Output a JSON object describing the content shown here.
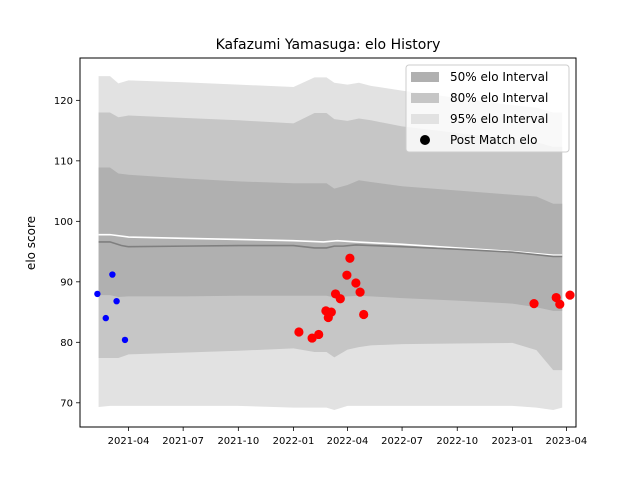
{
  "chart_data": {
    "type": "scatter",
    "title": "Kafazumi Yamasuga: elo History",
    "ylabel": "elo score",
    "xlabel": "",
    "xlim": [
      "2021-01-10",
      "2023-04-17"
    ],
    "ylim": [
      66,
      127
    ],
    "x_ticks": [
      "2021-04",
      "2021-07",
      "2021-10",
      "2022-01",
      "2022-04",
      "2022-07",
      "2022-10",
      "2023-01",
      "2023-04"
    ],
    "x_tick_dates": [
      "2021-04-01",
      "2021-07-01",
      "2021-10-01",
      "2022-01-01",
      "2022-04-01",
      "2022-07-01",
      "2022-10-01",
      "2023-01-01",
      "2023-04-01"
    ],
    "y_ticks": [
      70,
      80,
      90,
      100,
      110,
      120
    ],
    "legend_position": "upper right",
    "legend": [
      {
        "label": "50% elo Interval",
        "color": "#b0b0b0",
        "kind": "patch"
      },
      {
        "label": "80% elo Interval",
        "color": "#c6c6c6",
        "kind": "patch"
      },
      {
        "label": "95% elo Interval",
        "color": "#e2e2e2",
        "kind": "patch"
      },
      {
        "label": "Post Match elo",
        "color": "#000000",
        "kind": "marker"
      }
    ],
    "band_dates": [
      "2021-02-10",
      "2021-03-01",
      "2021-03-15",
      "2021-04-01",
      "2021-07-01",
      "2021-10-01",
      "2022-01-01",
      "2022-02-05",
      "2022-02-25",
      "2022-03-10",
      "2022-04-01",
      "2022-04-20",
      "2022-05-10",
      "2022-07-01",
      "2022-10-01",
      "2023-01-01",
      "2023-02-10",
      "2023-03-10",
      "2023-03-25"
    ],
    "band_95": {
      "upper": [
        124.0,
        124.0,
        122.8,
        123.3,
        123.0,
        122.6,
        122.2,
        123.8,
        123.8,
        122.9,
        122.6,
        122.9,
        122.4,
        121.6,
        120.4,
        119.2,
        118.8,
        118.0,
        118.0
      ],
      "lower": [
        69.3,
        69.5,
        69.5,
        69.5,
        69.5,
        69.5,
        69.2,
        69.2,
        69.2,
        68.8,
        69.5,
        69.5,
        69.5,
        69.5,
        69.5,
        69.5,
        69.2,
        68.8,
        69.2
      ]
    },
    "band_80": {
      "upper": [
        118.0,
        118.0,
        117.2,
        117.5,
        117.1,
        116.7,
        116.2,
        117.9,
        117.9,
        116.9,
        116.6,
        117.0,
        116.7,
        115.7,
        114.6,
        113.5,
        113.1,
        112.3,
        112.3
      ],
      "lower": [
        77.4,
        77.4,
        77.4,
        78.0,
        78.3,
        78.6,
        79.0,
        78.4,
        78.4,
        77.5,
        78.8,
        79.2,
        79.5,
        79.7,
        79.8,
        79.9,
        78.7,
        75.4,
        75.4
      ]
    },
    "band_50": {
      "upper": [
        108.9,
        108.9,
        107.9,
        107.7,
        107.1,
        106.6,
        106.3,
        106.3,
        106.3,
        105.4,
        106.0,
        106.8,
        106.5,
        105.8,
        105.1,
        104.4,
        104.1,
        102.9,
        102.9
      ],
      "lower": [
        87.8,
        87.8,
        87.5,
        87.6,
        87.6,
        87.7,
        87.7,
        87.7,
        87.7,
        87.4,
        87.6,
        87.7,
        87.6,
        87.3,
        86.9,
        86.4,
        85.8,
        85.2,
        85.2
      ]
    },
    "series": [
      {
        "kind": "line",
        "color": "#ffffff",
        "x": [
          "2021-02-10",
          "2021-03-01",
          "2021-04-01",
          "2021-07-01",
          "2021-10-01",
          "2022-01-01",
          "2022-02-20",
          "2022-03-15",
          "2022-04-15",
          "2022-07-01",
          "2022-10-01",
          "2023-01-01",
          "2023-03-10",
          "2023-03-25"
        ],
        "y": [
          97.8,
          97.8,
          97.4,
          97.2,
          97.0,
          96.8,
          96.6,
          96.8,
          96.6,
          96.2,
          95.6,
          95.0,
          94.4,
          94.4
        ]
      },
      {
        "kind": "line",
        "color": "#7f7f7f",
        "x": [
          "2021-02-10",
          "2021-03-01",
          "2021-03-20",
          "2021-04-01",
          "2021-07-01",
          "2021-10-01",
          "2022-01-01",
          "2022-02-05",
          "2022-02-25",
          "2022-03-10",
          "2022-03-25",
          "2022-04-15",
          "2022-07-01",
          "2022-10-01",
          "2023-01-01",
          "2023-03-10",
          "2023-03-25"
        ],
        "y": [
          96.6,
          96.6,
          96.0,
          95.8,
          95.9,
          96.0,
          96.0,
          95.6,
          95.6,
          95.9,
          95.9,
          96.1,
          95.8,
          95.4,
          94.9,
          94.2,
          94.2
        ]
      },
      {
        "kind": "scatter",
        "color": "#0000ff",
        "marker_size": "small",
        "x": [
          "2021-02-08",
          "2021-02-22",
          "2021-03-05",
          "2021-03-12",
          "2021-03-26"
        ],
        "y": [
          88.0,
          84.0,
          91.2,
          86.8,
          80.4
        ]
      },
      {
        "kind": "scatter",
        "color": "#ff0000",
        "marker_size": "large",
        "x": [
          "2022-01-10",
          "2022-02-01",
          "2022-02-12",
          "2022-02-24",
          "2022-02-28",
          "2022-03-05",
          "2022-03-12",
          "2022-03-20",
          "2022-03-31",
          "2022-04-05",
          "2022-04-15",
          "2022-04-22",
          "2022-04-28",
          "2023-02-06",
          "2023-03-15",
          "2023-03-21",
          "2023-04-07"
        ],
        "y": [
          81.7,
          80.7,
          81.3,
          85.2,
          84.1,
          85.0,
          88.0,
          87.2,
          91.1,
          93.9,
          89.8,
          88.3,
          84.6,
          86.4,
          87.4,
          86.3,
          87.8
        ]
      }
    ]
  }
}
